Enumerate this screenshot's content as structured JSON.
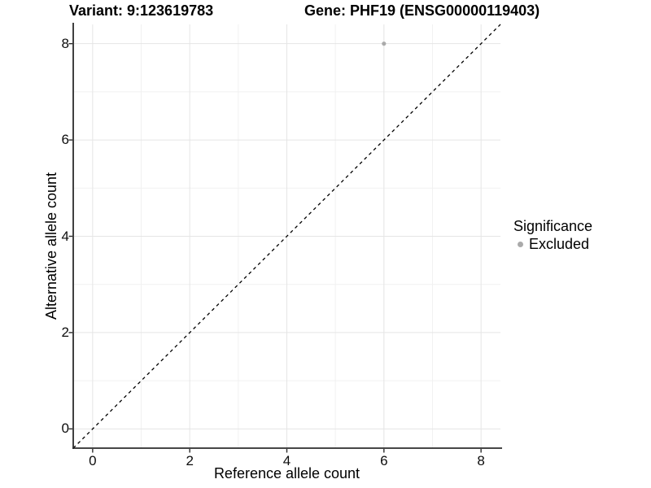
{
  "chart_data": {
    "type": "scatter",
    "titles": {
      "variant": "Variant: 9:123619783",
      "gene": "Gene: PHF19 (ENSG00000119403)"
    },
    "xlabel": "Reference allele count",
    "ylabel": "Alternative allele count",
    "xlim": [
      -0.4,
      8.4
    ],
    "ylim": [
      -0.4,
      8.4
    ],
    "x_ticks": [
      0,
      2,
      4,
      6,
      8
    ],
    "y_ticks": [
      0,
      2,
      4,
      6,
      8
    ],
    "x_minor_ticks": [
      1,
      3,
      5,
      7
    ],
    "y_minor_ticks": [
      1,
      3,
      5,
      7
    ],
    "grid": "major+minor",
    "identity_line": {
      "slope": 1,
      "intercept": 0,
      "style": "dashed",
      "color": "#000000"
    },
    "series": [
      {
        "name": "Excluded",
        "marker": "circle",
        "color": "#aaaaaa",
        "points": [
          {
            "x": 6,
            "y": 8
          }
        ]
      }
    ],
    "legend": {
      "title": "Significance",
      "position": "right",
      "items": [
        {
          "label": "Excluded",
          "color": "#aaaaaa",
          "marker": "circle"
        }
      ]
    },
    "colors": {
      "background": "#ffffff",
      "grid_major": "#e5e5e5",
      "grid_minor": "#f1f1f1",
      "axis": "#2b2b2b",
      "tick": "#2b2b2b",
      "point": "#aaaaaa"
    }
  }
}
